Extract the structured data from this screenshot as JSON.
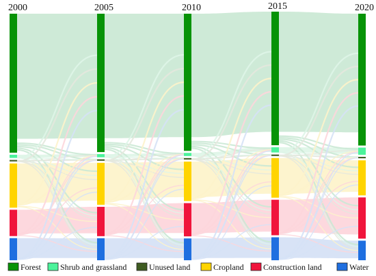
{
  "years": [
    "2000",
    "2005",
    "2010",
    "2015",
    "2020"
  ],
  "classes": [
    {
      "key": "forest",
      "label": "Forest",
      "color": "#079307",
      "flow_color": "#cbe9d5"
    },
    {
      "key": "shrub",
      "label": "Shrub and grassland",
      "color": "#4cf39b",
      "flow_color": "#dff5e8"
    },
    {
      "key": "unused",
      "label": "Unused land",
      "color": "#3f5c22",
      "flow_color": "#e4e8de"
    },
    {
      "key": "cropland",
      "label": "Cropland",
      "color": "#ffd400",
      "flow_color": "#fdf3cb"
    },
    {
      "key": "construction",
      "label": "Construction land",
      "color": "#f0153c",
      "flow_color": "#fdd6dc"
    },
    {
      "key": "water",
      "label": "Water",
      "color": "#1f6fe0",
      "flow_color": "#d6e2f6"
    }
  ],
  "node_values": [
    {
      "year": "2000",
      "forest": 66,
      "shrub": 1.5,
      "unused": 0.7,
      "cropland": 21,
      "construction": 12.5,
      "water": 10.5
    },
    {
      "year": "2005",
      "forest": 66,
      "shrub": 1.5,
      "unused": 0.7,
      "cropland": 20,
      "construction": 14,
      "water": 10.5
    },
    {
      "year": "2010",
      "forest": 66,
      "shrub": 1.5,
      "unused": 0.7,
      "cropland": 19,
      "construction": 16,
      "water": 10.5
    },
    {
      "year": "2015",
      "forest": 64,
      "shrub": 2.5,
      "unused": 0.7,
      "cropland": 19,
      "construction": 17,
      "water": 11
    },
    {
      "year": "2020",
      "forest": 64,
      "shrub": 3.5,
      "unused": 0.7,
      "cropland": 17,
      "construction": 20,
      "water": 9.5
    }
  ],
  "legend": [
    "Forest",
    "Shrub and grassland",
    "Unused land",
    "Cropland",
    "Construction land",
    "Water"
  ]
}
